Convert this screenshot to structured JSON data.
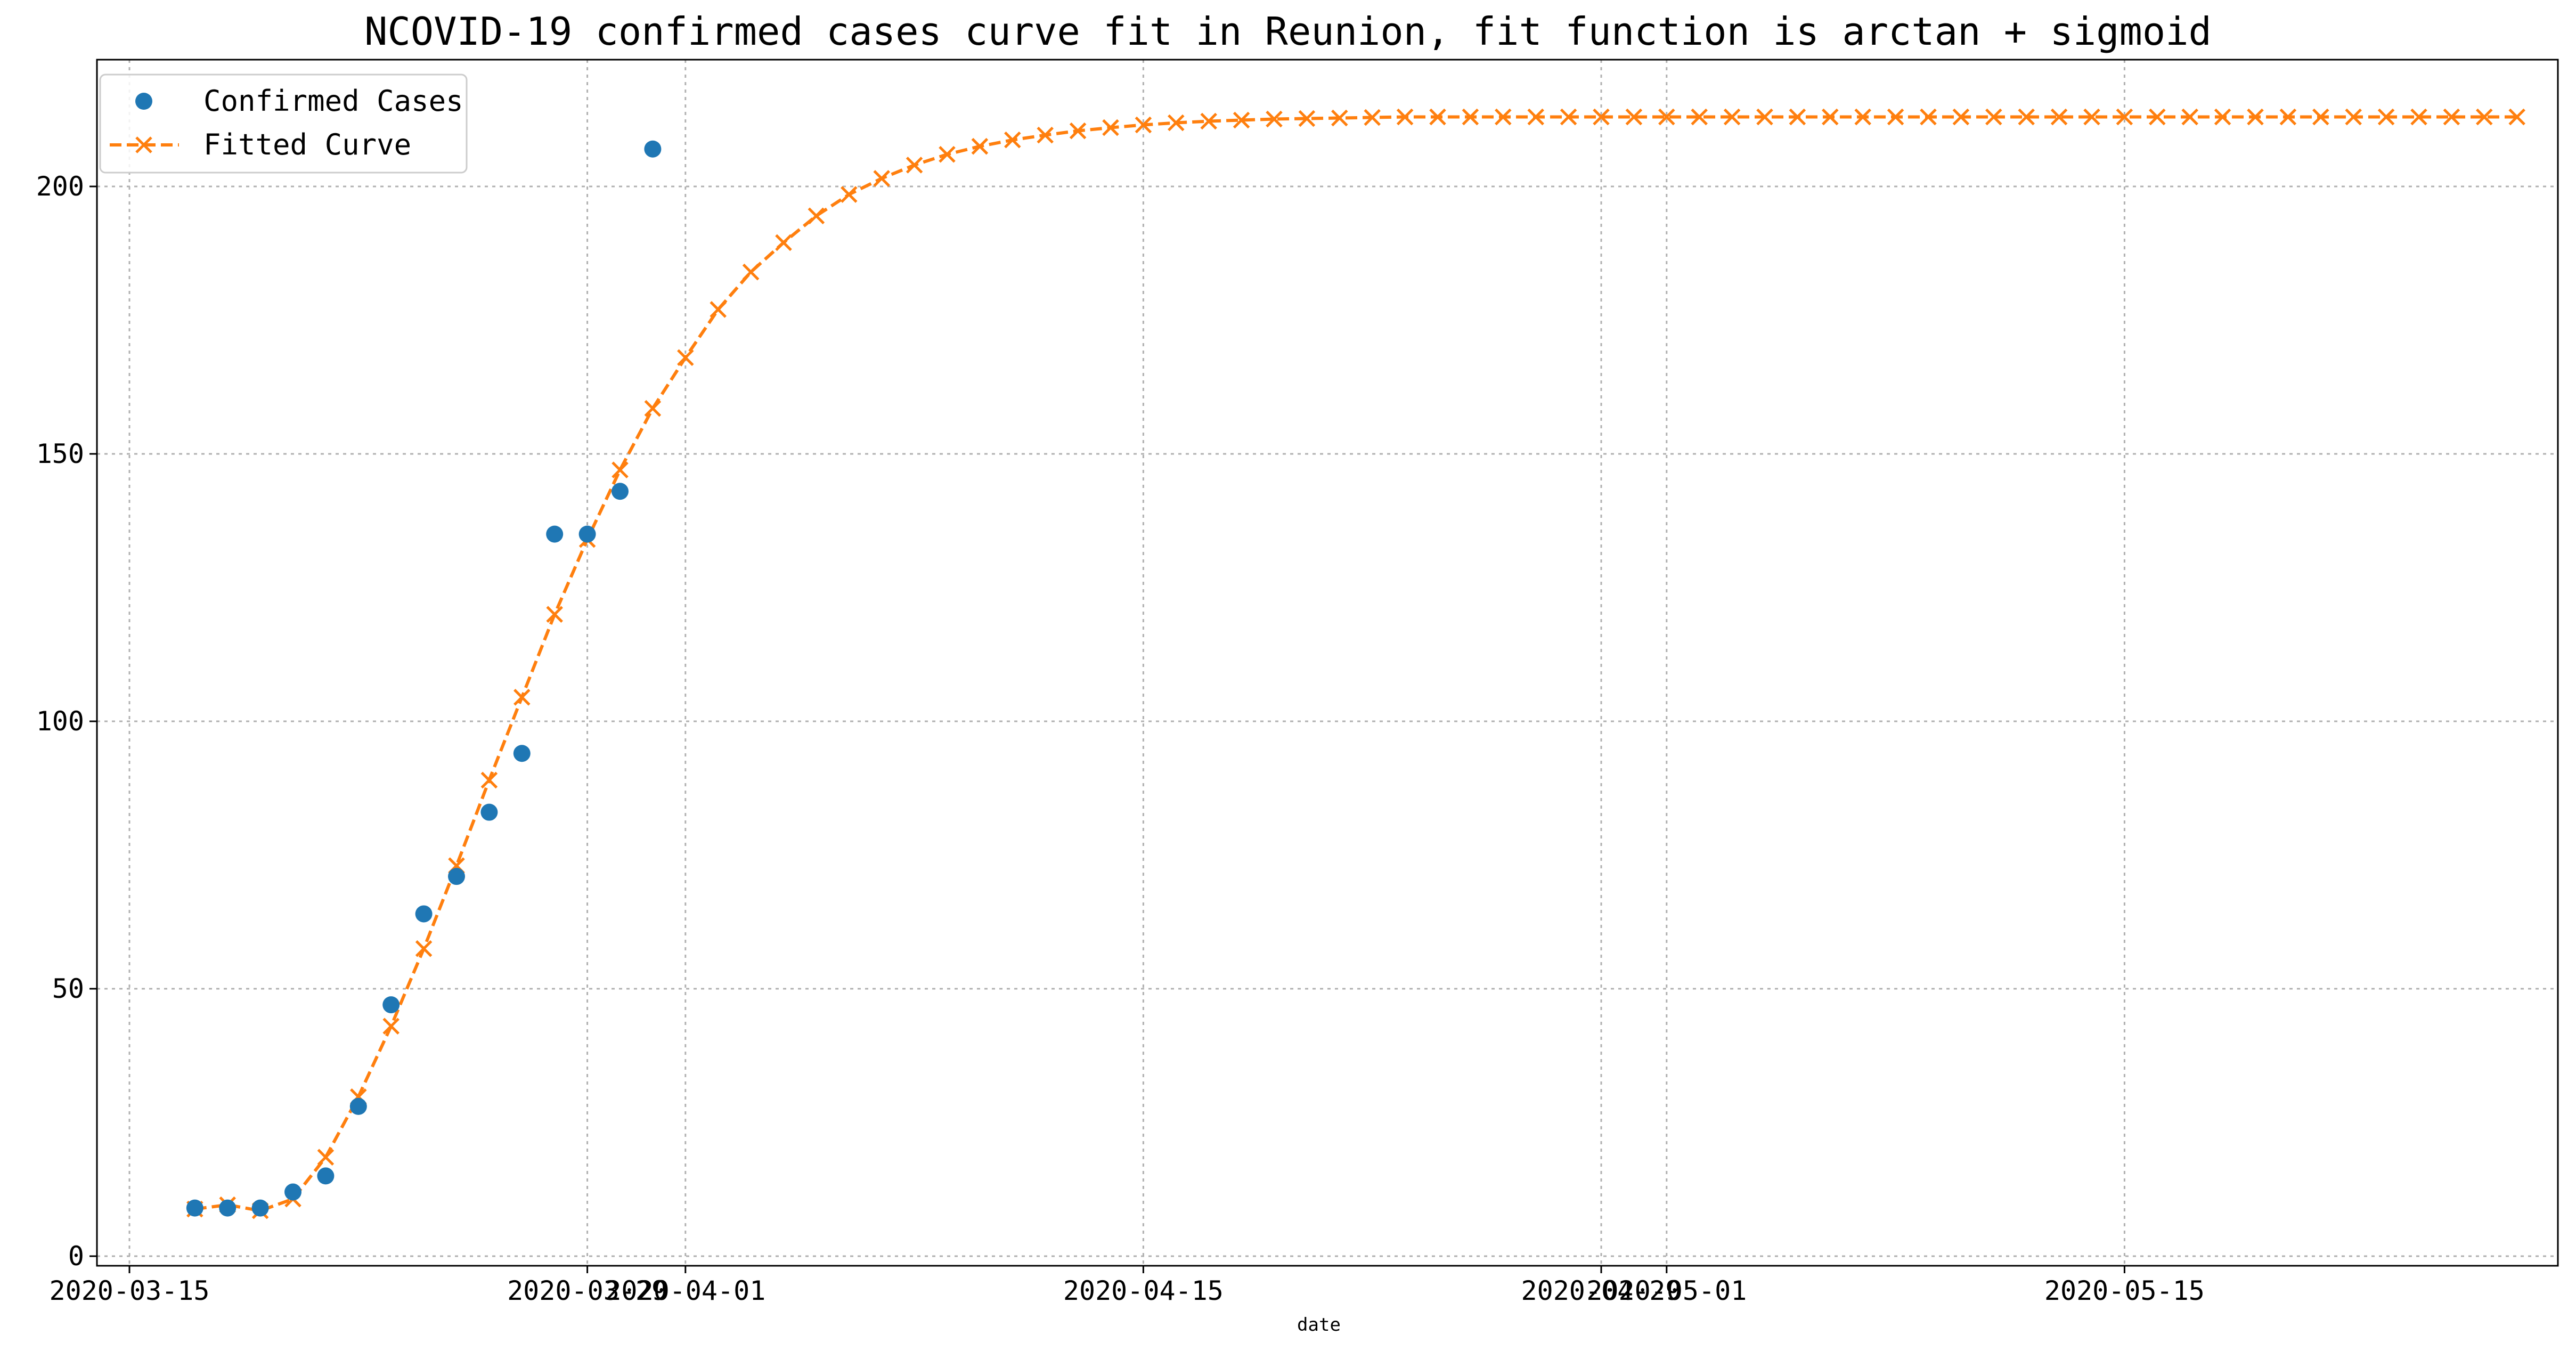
{
  "chart_data": {
    "type": "line",
    "title": "NCOVID-19 confirmed cases curve fit in Reunion, fit function is arctan + sigmoid",
    "xlabel": "date",
    "ylabel": "",
    "ylim": [
      -2,
      224
    ],
    "yticks": [
      0,
      50,
      100,
      150,
      200
    ],
    "xticks": [
      {
        "label": "2020-03-15",
        "day": 0
      },
      {
        "label": "2020-03-29",
        "day": 14
      },
      {
        "label": "2020-04-01",
        "day": 17
      },
      {
        "label": "2020-04-15",
        "day": 31
      },
      {
        "label": "2020-04-29",
        "day": 45
      },
      {
        "label": "2020-05-01",
        "day": 47
      },
      {
        "label": "2020-05-15",
        "day": 61
      }
    ],
    "grid": true,
    "legend_position": "upper-left",
    "series": [
      {
        "name": "Confirmed Cases",
        "style": "markers",
        "marker": "circle",
        "color": "#1f77b4",
        "x": [
          "2020-03-17",
          "2020-03-18",
          "2020-03-19",
          "2020-03-20",
          "2020-03-21",
          "2020-03-22",
          "2020-03-23",
          "2020-03-24",
          "2020-03-25",
          "2020-03-26",
          "2020-03-27",
          "2020-03-28",
          "2020-03-29",
          "2020-03-30",
          "2020-03-31"
        ],
        "values": [
          9,
          9,
          9,
          12,
          15,
          28,
          47,
          64,
          71,
          83,
          94,
          135,
          135,
          143,
          207
        ]
      },
      {
        "name": "Fitted Curve",
        "style": "dashed-line-x-markers",
        "marker": "x",
        "color": "#ff7f0e",
        "x_start": "2020-03-17",
        "x_end": "2020-05-27",
        "values": [
          8.8,
          9.6,
          8.5,
          10.7,
          18.5,
          29.8,
          43,
          57.5,
          73,
          89,
          104.5,
          120,
          134,
          147,
          158.5,
          168,
          177,
          184,
          189.5,
          194.5,
          198.5,
          201.5,
          204,
          206,
          207.5,
          208.7,
          209.6,
          210.4,
          211,
          211.5,
          211.9,
          212.2,
          212.4,
          212.6,
          212.7,
          212.8,
          212.9,
          213,
          213,
          213,
          213,
          213,
          213,
          213,
          213,
          213,
          213,
          213,
          213,
          213,
          213,
          213,
          213,
          213,
          213,
          213,
          213,
          213,
          213,
          213,
          213,
          213,
          213,
          213,
          213,
          213,
          213,
          213,
          213,
          213,
          213,
          213
        ]
      }
    ]
  }
}
